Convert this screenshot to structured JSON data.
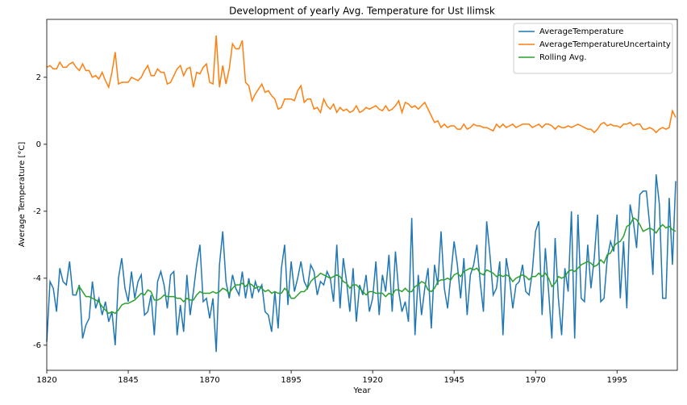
{
  "chart_data": {
    "type": "line",
    "title": "Development of yearly Avg. Temperature for Ust Ilimsk",
    "xlabel": "Year",
    "ylabel": "Average Temperature [°C]",
    "x": [
      1820,
      1821,
      1822,
      1823,
      1824,
      1825,
      1826,
      1827,
      1828,
      1829,
      1830,
      1831,
      1832,
      1833,
      1834,
      1835,
      1836,
      1837,
      1838,
      1839,
      1840,
      1841,
      1842,
      1843,
      1844,
      1845,
      1846,
      1847,
      1848,
      1849,
      1850,
      1851,
      1852,
      1853,
      1854,
      1855,
      1856,
      1857,
      1858,
      1859,
      1860,
      1861,
      1862,
      1863,
      1864,
      1865,
      1866,
      1867,
      1868,
      1869,
      1870,
      1871,
      1872,
      1873,
      1874,
      1875,
      1876,
      1877,
      1878,
      1879,
      1880,
      1881,
      1882,
      1883,
      1884,
      1885,
      1886,
      1887,
      1888,
      1889,
      1890,
      1891,
      1892,
      1893,
      1894,
      1895,
      1896,
      1897,
      1898,
      1899,
      1900,
      1901,
      1902,
      1903,
      1904,
      1905,
      1906,
      1907,
      1908,
      1909,
      1910,
      1911,
      1912,
      1913,
      1914,
      1915,
      1916,
      1917,
      1918,
      1919,
      1920,
      1921,
      1922,
      1923,
      1924,
      1925,
      1926,
      1927,
      1928,
      1929,
      1930,
      1931,
      1932,
      1933,
      1934,
      1935,
      1936,
      1937,
      1938,
      1939,
      1940,
      1941,
      1942,
      1943,
      1944,
      1945,
      1946,
      1947,
      1948,
      1949,
      1950,
      1951,
      1952,
      1953,
      1954,
      1955,
      1956,
      1957,
      1958,
      1959,
      1960,
      1961,
      1962,
      1963,
      1964,
      1965,
      1966,
      1967,
      1968,
      1969,
      1970,
      1971,
      1972,
      1973,
      1974,
      1975,
      1976,
      1977,
      1978,
      1979,
      1980,
      1981,
      1982,
      1983,
      1984,
      1985,
      1986,
      1987,
      1988,
      1989,
      1990,
      1991,
      1992,
      1993,
      1994,
      1995,
      1996,
      1997,
      1998,
      1999,
      2000,
      2001,
      2002,
      2003,
      2004,
      2005,
      2006,
      2007,
      2008,
      2009,
      2010,
      2011,
      2012,
      2013
    ],
    "series": [
      {
        "name": "AverageTemperature",
        "color": "#1f77b4",
        "values": [
          -5.9,
          -4.1,
          -4.3,
          -5.0,
          -3.7,
          -4.1,
          -4.2,
          -3.5,
          -4.5,
          -4.5,
          -4.2,
          -5.8,
          -5.4,
          -5.2,
          -4.1,
          -4.9,
          -4.6,
          -5.1,
          -4.7,
          -5.3,
          -5.0,
          -6.0,
          -4.0,
          -3.4,
          -4.3,
          -4.7,
          -3.8,
          -4.6,
          -4.1,
          -3.9,
          -5.1,
          -5.0,
          -4.5,
          -5.7,
          -4.1,
          -3.8,
          -4.2,
          -4.9,
          -3.9,
          -3.8,
          -5.7,
          -4.8,
          -5.6,
          -3.9,
          -5.1,
          -4.4,
          -3.6,
          -3.0,
          -4.7,
          -4.6,
          -5.2,
          -4.6,
          -6.2,
          -3.6,
          -2.6,
          -4.1,
          -4.6,
          -3.9,
          -4.3,
          -4.5,
          -3.8,
          -4.6,
          -4.0,
          -4.6,
          -4.1,
          -4.4,
          -4.2,
          -5.0,
          -5.1,
          -5.6,
          -4.4,
          -5.5,
          -3.7,
          -3.0,
          -4.8,
          -3.5,
          -4.4,
          -4.0,
          -3.5,
          -4.1,
          -4.3,
          -3.6,
          -3.8,
          -4.5,
          -4.1,
          -4.2,
          -3.8,
          -4.0,
          -4.7,
          -3.0,
          -4.9,
          -3.4,
          -4.1,
          -5.0,
          -3.7,
          -5.3,
          -4.2,
          -4.5,
          -3.9,
          -5.0,
          -4.6,
          -3.5,
          -5.1,
          -3.9,
          -4.4,
          -3.3,
          -5.0,
          -3.2,
          -4.4,
          -5.0,
          -4.7,
          -5.3,
          -2.2,
          -5.7,
          -3.9,
          -5.1,
          -4.3,
          -3.7,
          -5.5,
          -3.6,
          -4.2,
          -2.6,
          -4.3,
          -4.9,
          -3.9,
          -2.9,
          -3.6,
          -4.6,
          -3.4,
          -5.1,
          -3.9,
          -3.6,
          -3.0,
          -4.1,
          -5.0,
          -2.3,
          -3.3,
          -4.5,
          -4.3,
          -3.5,
          -5.7,
          -3.4,
          -4.0,
          -4.9,
          -4.2,
          -4.1,
          -3.6,
          -4.4,
          -4.5,
          -3.8,
          -2.6,
          -2.3,
          -5.1,
          -3.1,
          -4.4,
          -5.8,
          -2.8,
          -4.6,
          -5.7,
          -3.7,
          -4.4,
          -2.0,
          -5.8,
          -2.1,
          -4.6,
          -4.7,
          -3.0,
          -4.3,
          -3.4,
          -2.1,
          -4.7,
          -4.6,
          -3.4,
          -2.9,
          -3.2,
          -2.1,
          -4.6,
          -2.9,
          -4.9,
          -1.8,
          -2.3,
          -3.1,
          -1.5,
          -1.4,
          -1.4,
          -2.4,
          -3.9,
          -0.9,
          -1.8,
          -4.6,
          -4.6,
          -1.6,
          -3.6,
          -1.1
        ]
      },
      {
        "name": "AverageTemperatureUncertainty",
        "color": "#ff7f0e",
        "values": [
          2.3,
          2.35,
          2.25,
          2.25,
          2.45,
          2.3,
          2.3,
          2.4,
          2.45,
          2.3,
          2.2,
          2.4,
          2.2,
          2.2,
          2.0,
          2.05,
          1.95,
          2.15,
          1.9,
          1.7,
          2.15,
          2.75,
          1.8,
          1.85,
          1.85,
          1.85,
          2.0,
          1.95,
          1.9,
          2.0,
          2.2,
          2.35,
          2.05,
          2.05,
          2.25,
          2.15,
          2.15,
          1.8,
          1.85,
          2.05,
          2.25,
          2.35,
          2.05,
          2.25,
          2.3,
          1.7,
          2.15,
          2.1,
          2.3,
          2.4,
          1.85,
          1.8,
          3.25,
          1.7,
          2.35,
          1.8,
          2.25,
          3.0,
          2.85,
          2.85,
          3.1,
          1.85,
          1.75,
          1.3,
          1.5,
          1.65,
          1.8,
          1.55,
          1.6,
          1.45,
          1.35,
          1.05,
          1.1,
          1.35,
          1.35,
          1.35,
          1.3,
          1.6,
          1.75,
          1.25,
          1.35,
          1.35,
          1.05,
          1.1,
          0.95,
          1.35,
          1.15,
          1.05,
          1.2,
          0.95,
          1.1,
          1.0,
          1.05,
          0.95,
          1.0,
          1.15,
          0.95,
          1.0,
          1.1,
          1.05,
          1.1,
          1.15,
          1.05,
          1.0,
          1.15,
          1.0,
          1.05,
          1.15,
          1.3,
          0.95,
          1.25,
          1.2,
          1.1,
          1.15,
          1.05,
          1.15,
          1.25,
          1.05,
          0.85,
          0.65,
          0.7,
          0.5,
          0.6,
          0.5,
          0.55,
          0.55,
          0.45,
          0.45,
          0.6,
          0.45,
          0.5,
          0.6,
          0.55,
          0.55,
          0.5,
          0.5,
          0.45,
          0.4,
          0.6,
          0.5,
          0.6,
          0.5,
          0.55,
          0.6,
          0.5,
          0.55,
          0.6,
          0.6,
          0.6,
          0.5,
          0.55,
          0.6,
          0.5,
          0.6,
          0.6,
          0.55,
          0.45,
          0.55,
          0.5,
          0.5,
          0.55,
          0.5,
          0.55,
          0.6,
          0.55,
          0.5,
          0.45,
          0.45,
          0.35,
          0.45,
          0.6,
          0.65,
          0.55,
          0.6,
          0.55,
          0.55,
          0.5,
          0.6,
          0.6,
          0.65,
          0.55,
          0.6,
          0.6,
          0.45,
          0.45,
          0.5,
          0.45,
          0.35,
          0.45,
          0.5,
          0.45,
          0.5,
          1.0,
          0.8
        ]
      },
      {
        "name": "Rolling Avg.",
        "color": "#2ca02c",
        "values": [
          null,
          null,
          null,
          null,
          null,
          null,
          null,
          null,
          null,
          -4.45,
          -4.25,
          -4.4,
          -4.55,
          -4.55,
          -4.6,
          -4.65,
          -4.7,
          -4.85,
          -4.95,
          -5.05,
          -5.0,
          -5.05,
          -4.95,
          -4.8,
          -4.75,
          -4.75,
          -4.7,
          -4.65,
          -4.55,
          -4.45,
          -4.5,
          -4.35,
          -4.4,
          -4.65,
          -4.65,
          -4.6,
          -4.5,
          -4.55,
          -4.55,
          -4.55,
          -4.6,
          -4.6,
          -4.7,
          -4.6,
          -4.65,
          -4.65,
          -4.5,
          -4.4,
          -4.45,
          -4.45,
          -4.45,
          -4.4,
          -4.45,
          -4.4,
          -4.3,
          -4.35,
          -4.45,
          -4.3,
          -4.2,
          -4.2,
          -4.15,
          -4.25,
          -4.15,
          -4.2,
          -4.3,
          -4.25,
          -4.3,
          -4.4,
          -4.35,
          -4.45,
          -4.4,
          -4.45,
          -4.45,
          -4.3,
          -4.4,
          -4.6,
          -4.6,
          -4.5,
          -4.4,
          -4.4,
          -4.3,
          -4.1,
          -4.0,
          -3.95,
          -3.85,
          -3.9,
          -3.95,
          -4.0,
          -3.95,
          -3.9,
          -3.95,
          -4.1,
          -4.15,
          -4.3,
          -4.2,
          -4.2,
          -4.3,
          -4.4,
          -4.5,
          -4.4,
          -4.4,
          -4.45,
          -4.45,
          -4.45,
          -4.55,
          -4.45,
          -4.5,
          -4.35,
          -4.35,
          -4.4,
          -4.3,
          -4.4,
          -4.4,
          -4.25,
          -4.2,
          -4.1,
          -4.15,
          -4.35,
          -4.4,
          -4.3,
          -4.1,
          -4.05,
          -4.05,
          -4.0,
          -4.05,
          -3.9,
          -3.85,
          -3.95,
          -3.8,
          -3.75,
          -3.7,
          -3.75,
          -3.7,
          -3.85,
          -3.9,
          -3.75,
          -3.8,
          -3.85,
          -3.95,
          -3.9,
          -3.95,
          -3.9,
          -3.95,
          -4.1,
          -4.0,
          -3.95,
          -3.9,
          -3.95,
          -4.05,
          -3.95,
          -3.95,
          -3.85,
          -3.95,
          -3.85,
          -4.0,
          -4.25,
          -4.15,
          -3.95,
          -4.0,
          -3.95,
          -3.8,
          -3.75,
          -3.8,
          -3.7,
          -3.6,
          -3.55,
          -3.5,
          -3.55,
          -3.65,
          -3.6,
          -3.45,
          -3.55,
          -3.3,
          -3.25,
          -3.05,
          -2.95,
          -2.9,
          -2.75,
          -2.45,
          -2.4,
          -2.2,
          -2.25,
          -2.4,
          -2.6,
          -2.55,
          -2.5,
          -2.55,
          -2.65,
          -2.5,
          -2.4,
          -2.5,
          -2.45,
          -2.55,
          -2.6
        ]
      }
    ],
    "xlim": [
      1820,
      2013.5
    ],
    "ylim": [
      -6.75,
      3.73
    ],
    "xticks": [
      1820,
      1845,
      1870,
      1895,
      1920,
      1945,
      1970,
      1995
    ],
    "yticks": [
      -6,
      -4,
      -2,
      0,
      2
    ],
    "grid": false,
    "legend": "upper right"
  }
}
